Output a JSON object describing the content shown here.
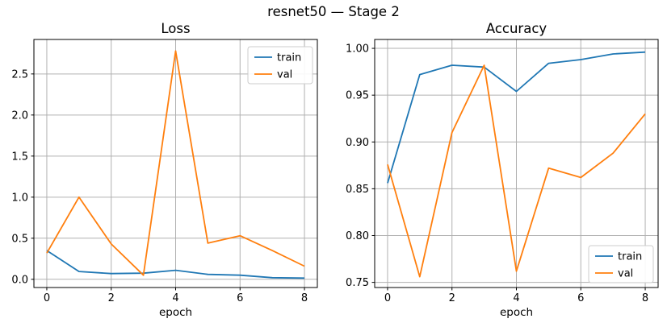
{
  "suptitle": "resnet50 — Stage 2",
  "colors": {
    "background": "#ffffff",
    "train": "#1f77b4",
    "val": "#ff7f0e",
    "grid": "#b0b0b0",
    "frame": "#000000",
    "text": "#000000",
    "legend_border": "#cccccc",
    "legend_fill": "rgba(255,255,255,0.9)"
  },
  "chart_data": [
    {
      "type": "line",
      "title": "Loss",
      "xlabel": "epoch",
      "ylabel": "",
      "x": [
        0,
        1,
        2,
        3,
        4,
        5,
        6,
        7,
        8
      ],
      "series": [
        {
          "name": "train",
          "color": "#1f77b4",
          "values": [
            0.35,
            0.095,
            0.07,
            0.075,
            0.11,
            0.06,
            0.05,
            0.02,
            0.015
          ]
        },
        {
          "name": "val",
          "color": "#ff7f0e",
          "values": [
            0.32,
            1.0,
            0.43,
            0.05,
            2.78,
            0.44,
            0.53,
            0.35,
            0.16
          ]
        }
      ],
      "xlim": [
        -0.4,
        8.4
      ],
      "ylim": [
        -0.1,
        2.92
      ],
      "xticks": [
        0,
        2,
        4,
        6,
        8
      ],
      "xtick_labels": [
        "0",
        "2",
        "4",
        "6",
        "8"
      ],
      "yticks": [
        0.0,
        0.5,
        1.0,
        1.5,
        2.0,
        2.5
      ],
      "ytick_labels": [
        "0.0",
        "0.5",
        "1.0",
        "1.5",
        "2.0",
        "2.5"
      ],
      "grid": true,
      "legend_position": "upper-right",
      "legend_labels": [
        "train",
        "val"
      ]
    },
    {
      "type": "line",
      "title": "Accuracy",
      "xlabel": "epoch",
      "ylabel": "",
      "x": [
        0,
        1,
        2,
        3,
        4,
        5,
        6,
        7,
        8
      ],
      "series": [
        {
          "name": "train",
          "color": "#1f77b4",
          "values": [
            0.856,
            0.972,
            0.982,
            0.98,
            0.954,
            0.984,
            0.988,
            0.994,
            0.996
          ]
        },
        {
          "name": "val",
          "color": "#ff7f0e",
          "values": [
            0.876,
            0.756,
            0.91,
            0.982,
            0.762,
            0.872,
            0.862,
            0.888,
            0.93
          ]
        }
      ],
      "xlim": [
        -0.4,
        8.4
      ],
      "ylim": [
        0.7445,
        1.0095
      ],
      "xticks": [
        0,
        2,
        4,
        6,
        8
      ],
      "xtick_labels": [
        "0",
        "2",
        "4",
        "6",
        "8"
      ],
      "yticks": [
        0.75,
        0.8,
        0.85,
        0.9,
        0.95,
        1.0
      ],
      "ytick_labels": [
        "0.75",
        "0.80",
        "0.85",
        "0.90",
        "0.95",
        "1.00"
      ],
      "grid": true,
      "legend_position": "lower-right",
      "legend_labels": [
        "train",
        "val"
      ]
    }
  ]
}
